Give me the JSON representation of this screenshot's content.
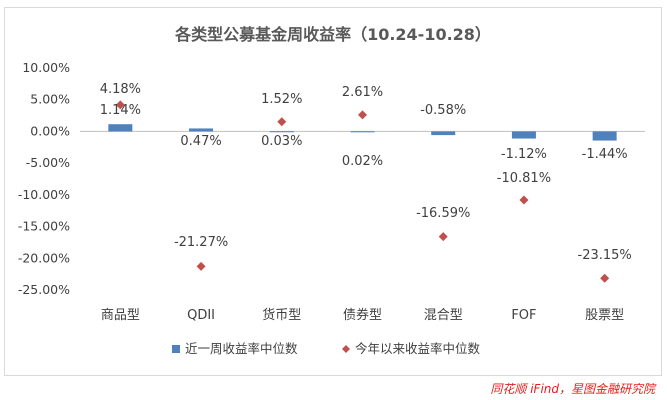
{
  "chart_data": {
    "type": "bar",
    "title": "各类型公募基金周收益率（10.24-10.28）",
    "categories": [
      "商品型",
      "QDII",
      "货币型",
      "债券型",
      "混合型",
      "FOF",
      "股票型"
    ],
    "series": [
      {
        "name": "近一周收益率中位数",
        "type": "bar",
        "values": [
          1.14,
          0.47,
          0.03,
          0.02,
          -0.58,
          -1.12,
          -1.44
        ],
        "labels": [
          "1.14%",
          "0.47%",
          "0.03%",
          "0.02%",
          "-0.58%",
          "-1.12%",
          "-1.44%"
        ],
        "color": "#4f81bd"
      },
      {
        "name": "今年以来收益率中位数",
        "type": "scatter",
        "values": [
          4.18,
          -21.27,
          1.52,
          2.61,
          -16.59,
          -10.81,
          -23.15
        ],
        "labels": [
          "4.18%",
          "-21.27%",
          "1.52%",
          "2.61%",
          "-16.59%",
          "-10.81%",
          "-23.15%"
        ],
        "color": "#c0504d"
      }
    ],
    "ylim": [
      -25,
      10
    ],
    "yticks": [
      10,
      5,
      0,
      -5,
      -10,
      -15,
      -20,
      -25
    ],
    "ytick_labels": [
      "10.00%",
      "5.00%",
      "0.00%",
      "-5.00%",
      "-10.00%",
      "-15.00%",
      "-20.00%",
      "-25.00%"
    ],
    "grid": false,
    "legend_position": "bottom"
  },
  "source": "同花顺 iFind，星图金融研究院"
}
